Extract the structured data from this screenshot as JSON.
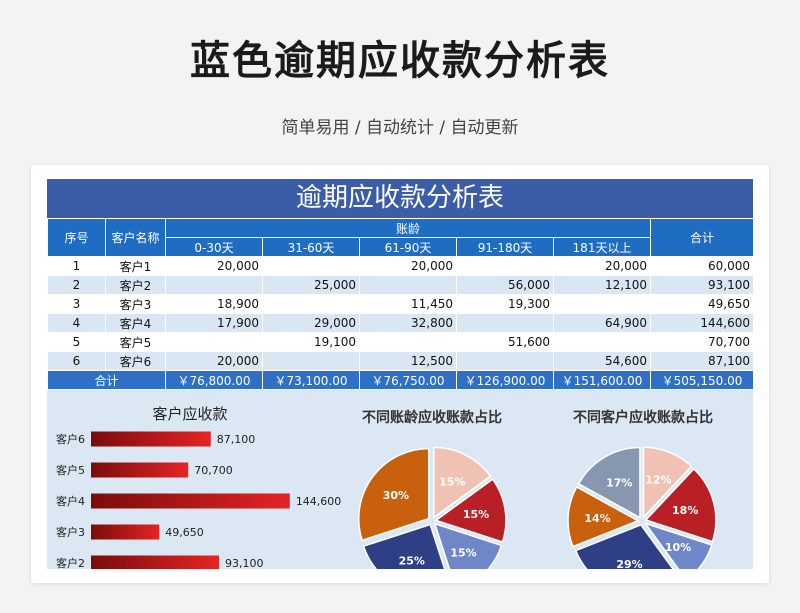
{
  "header": {
    "title": "蓝色逾期应收款分析表",
    "subtitle": "简单易用 / 自动统计 / 自动更新"
  },
  "sheet": {
    "title": "逾期应收款分析表",
    "headers": {
      "seq": "序号",
      "customer": "客户名称",
      "aging": "账龄",
      "total": "合计",
      "buckets": [
        "0-30天",
        "31-60天",
        "61-90天",
        "91-180天",
        "181天以上"
      ]
    },
    "rows": [
      {
        "seq": "1",
        "name": "客户1",
        "v": [
          "20,000",
          "",
          "20,000",
          "",
          "20,000"
        ],
        "total": "60,000"
      },
      {
        "seq": "2",
        "name": "客户2",
        "v": [
          "",
          "25,000",
          "",
          "56,000",
          "12,100"
        ],
        "total": "93,100"
      },
      {
        "seq": "3",
        "name": "客户3",
        "v": [
          "18,900",
          "",
          "11,450",
          "19,300",
          ""
        ],
        "total": "49,650"
      },
      {
        "seq": "4",
        "name": "客户4",
        "v": [
          "17,900",
          "29,000",
          "32,800",
          "",
          "64,900"
        ],
        "total": "144,600"
      },
      {
        "seq": "5",
        "name": "客户5",
        "v": [
          "",
          "19,100",
          "",
          "51,600",
          ""
        ],
        "total": "70,700"
      },
      {
        "seq": "6",
        "name": "客户6",
        "v": [
          "20,000",
          "",
          "12,500",
          "",
          "54,600"
        ],
        "total": "87,100"
      }
    ],
    "footer": {
      "label": "合计",
      "v": [
        "￥76,800.00",
        "￥73,100.00",
        "￥76,750.00",
        "￥126,900.00",
        "￥151,600.00"
      ],
      "total": "￥505,150.00"
    }
  },
  "chart_data": [
    {
      "type": "bar",
      "orientation": "horizontal",
      "title": "客户应收款",
      "categories": [
        "客户6",
        "客户5",
        "客户4",
        "客户3",
        "客户2"
      ],
      "values": [
        87100,
        70700,
        144600,
        49650,
        93100
      ],
      "labels": [
        "87,100",
        "70,700",
        "144,600",
        "49,650",
        "93,100"
      ],
      "xlim": [
        0,
        160000
      ],
      "colors": [
        "#7a0c0c",
        "#e62424"
      ]
    },
    {
      "type": "pie",
      "title": "不同账龄应收账款占比",
      "slices": [
        {
          "value": 15,
          "label": "15%",
          "color": "#f0c2b4"
        },
        {
          "value": 15,
          "label": "15%",
          "color": "#b82025"
        },
        {
          "value": 15,
          "label": "15%",
          "color": "#6f86c9"
        },
        {
          "value": 25,
          "label": "25%",
          "color": "#2e3f85"
        },
        {
          "value": 30,
          "label": "30%",
          "color": "#c8600e"
        }
      ]
    },
    {
      "type": "pie",
      "title": "不同客户应收账款占比",
      "slices": [
        {
          "value": 12,
          "label": "12%",
          "color": "#f0c2b4"
        },
        {
          "value": 18,
          "label": "18%",
          "color": "#b82025"
        },
        {
          "value": 10,
          "label": "10%",
          "color": "#6f86c9"
        },
        {
          "value": 29,
          "label": "29%",
          "color": "#2e3f85"
        },
        {
          "value": 14,
          "label": "14%",
          "color": "#c8600e"
        },
        {
          "value": 17,
          "label": "17%",
          "color": "#8797b0"
        }
      ]
    }
  ]
}
